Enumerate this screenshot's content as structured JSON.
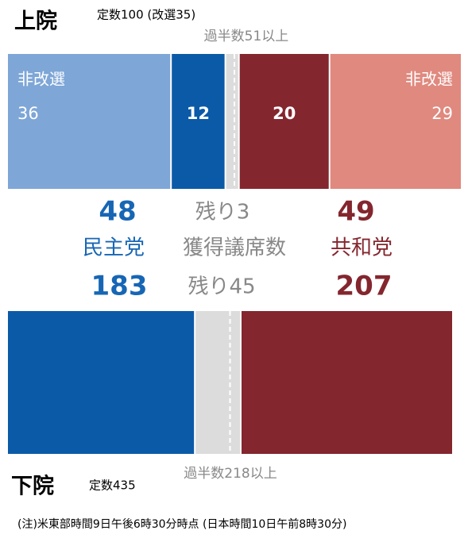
{
  "senate": {
    "title": "上院",
    "note": "定数100 (改選35)",
    "majority": "過半数51以上",
    "segments": [
      {
        "label": "非改選",
        "value": 36,
        "color": "#7ea6d7"
      },
      {
        "value": 12,
        "color": "#0b5aa8"
      },
      {
        "value": 3,
        "color": "#dcdcdc"
      },
      {
        "value": 20,
        "color": "#84262e"
      },
      {
        "label": "非改選",
        "value": 29,
        "color": "#e0897f"
      }
    ],
    "dem_total": 48,
    "rep_total": 49,
    "remaining": "残り3"
  },
  "legend": {
    "dem": "民主党",
    "center": "獲得議席数",
    "rep": "共和党"
  },
  "house": {
    "title": "下院",
    "note": "定数435",
    "majority": "過半数218以上",
    "segments": [
      {
        "value": 183,
        "color": "#0b5aa8"
      },
      {
        "value": 45,
        "color": "#dcdcdc"
      },
      {
        "value": 207,
        "color": "#84262e"
      }
    ],
    "dem_total": 183,
    "rep_total": 207,
    "remaining": "残り45"
  },
  "footnote": "(注)米東部時間9日午後6時30分時点 (日本時間10日午前8時30分)"
}
